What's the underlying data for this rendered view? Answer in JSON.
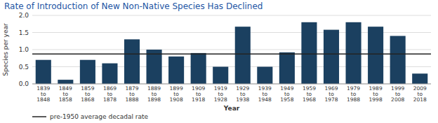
{
  "chart_data": {
    "type": "bar",
    "title": "Rate of Introduction of New Non-Native Species Has Declined",
    "xlabel": "Year",
    "ylabel": "Species per year",
    "categories": [
      "1839\nto\n1848",
      "1849\nto\n1858",
      "1859\nto\n1868",
      "1869\nto\n1878",
      "1879\nto\n1888",
      "1889\nto\n1898",
      "1899\nto\n1908",
      "1909\nto\n1918",
      "1919\nto\n1928",
      "1929\nto\n1938",
      "1939\nto\n1948",
      "1949\nto\n1958",
      "1959\nto\n1968",
      "1969\nto\n1978",
      "1979\nto\n1988",
      "1989\nto\n1998",
      "1999\nto\n2008",
      "2009\nto\n2018"
    ],
    "values": [
      0.7,
      0.12,
      0.7,
      0.6,
      1.3,
      1.0,
      0.8,
      0.9,
      0.5,
      1.67,
      0.5,
      0.92,
      1.8,
      1.58,
      1.8,
      1.67,
      1.4,
      0.3
    ],
    "color": "#1b4060",
    "ylim": [
      0,
      2.0
    ],
    "yticks": [
      {
        "value": 0,
        "label": "0.0"
      },
      0.5,
      {
        "value": 1,
        "label": "1.0"
      },
      1.5,
      {
        "value": 2,
        "label": "2.0"
      }
    ],
    "grid": true,
    "legend": "bottom",
    "reference_lines": [
      {
        "name": "pre-1950 average decadal rate",
        "value": 0.87,
        "color": "#222222"
      }
    ]
  }
}
